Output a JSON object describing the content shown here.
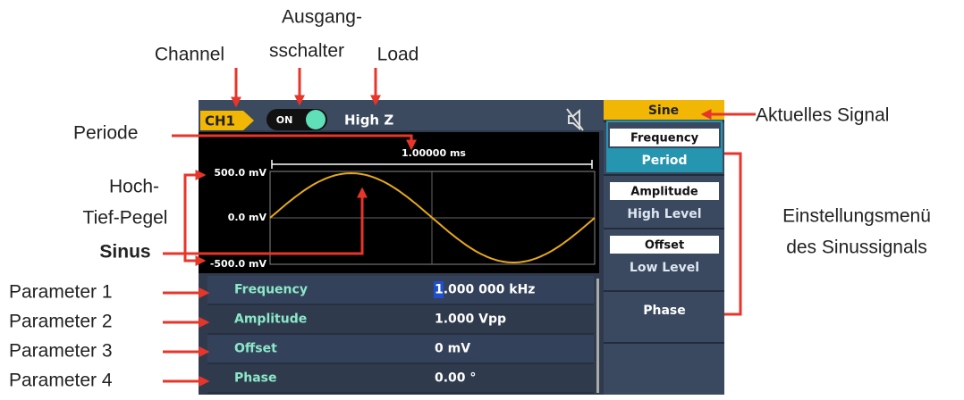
{
  "annotations": {
    "output_switch_1": "Ausgang-",
    "output_switch_2": "sschalter",
    "channel": "Channel",
    "load": "Load",
    "period": "Periode",
    "level_1": "Hoch-",
    "level_2": "Tief-Pegel",
    "sine": "Sinus",
    "parameters": [
      "Parameter 1",
      "Parameter 2",
      "Parameter 3",
      "Parameter 4"
    ],
    "current_signal": "Aktuelles Signal",
    "menu_1": "Einstellungsmenü",
    "menu_2": "des Sinussignals"
  },
  "screen": {
    "channel": "CH1",
    "output": "ON",
    "load": "High Z",
    "period": "1.00000 ms",
    "levels": [
      "500.0 mV",
      "0.0 mV",
      "-500.0 mV"
    ],
    "parameters": [
      {
        "name": "Frequency",
        "value": "1.000 000 kHz"
      },
      {
        "name": "Amplitude",
        "value": "1.000 Vpp"
      },
      {
        "name": "Offset",
        "value": "0 mV"
      },
      {
        "name": "Phase",
        "value": "0.00 °"
      }
    ],
    "menu": {
      "signal": "Sine",
      "items": [
        {
          "top": "Frequency",
          "bottom": "Period"
        },
        {
          "top": "Amplitude",
          "bottom": "High Level"
        },
        {
          "top": "Offset",
          "bottom": "Low Level"
        },
        {
          "label": "Phase"
        }
      ]
    }
  }
}
